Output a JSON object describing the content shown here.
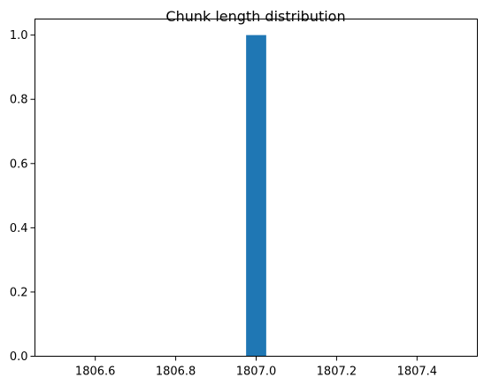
{
  "chart_data": {
    "type": "bar",
    "title": "Chunk length distribution",
    "xlabel": "",
    "ylabel": "",
    "xlim": [
      1806.45,
      1807.55
    ],
    "ylim": [
      0,
      1.05
    ],
    "xticks": [
      1806.6,
      1806.8,
      1807.0,
      1807.2,
      1807.4
    ],
    "xtick_labels": [
      "1806.6",
      "1806.8",
      "1807.0",
      "1807.2",
      "1807.4"
    ],
    "yticks": [
      0.0,
      0.2,
      0.4,
      0.6,
      0.8,
      1.0
    ],
    "ytick_labels": [
      "0.0",
      "0.2",
      "0.4",
      "0.6",
      "0.8",
      "1.0"
    ],
    "bins": [
      {
        "x_start": 1806.975,
        "x_end": 1807.025,
        "value": 1.0
      }
    ],
    "bar_color": "#1f77b4",
    "grid": false,
    "legend": "none"
  }
}
